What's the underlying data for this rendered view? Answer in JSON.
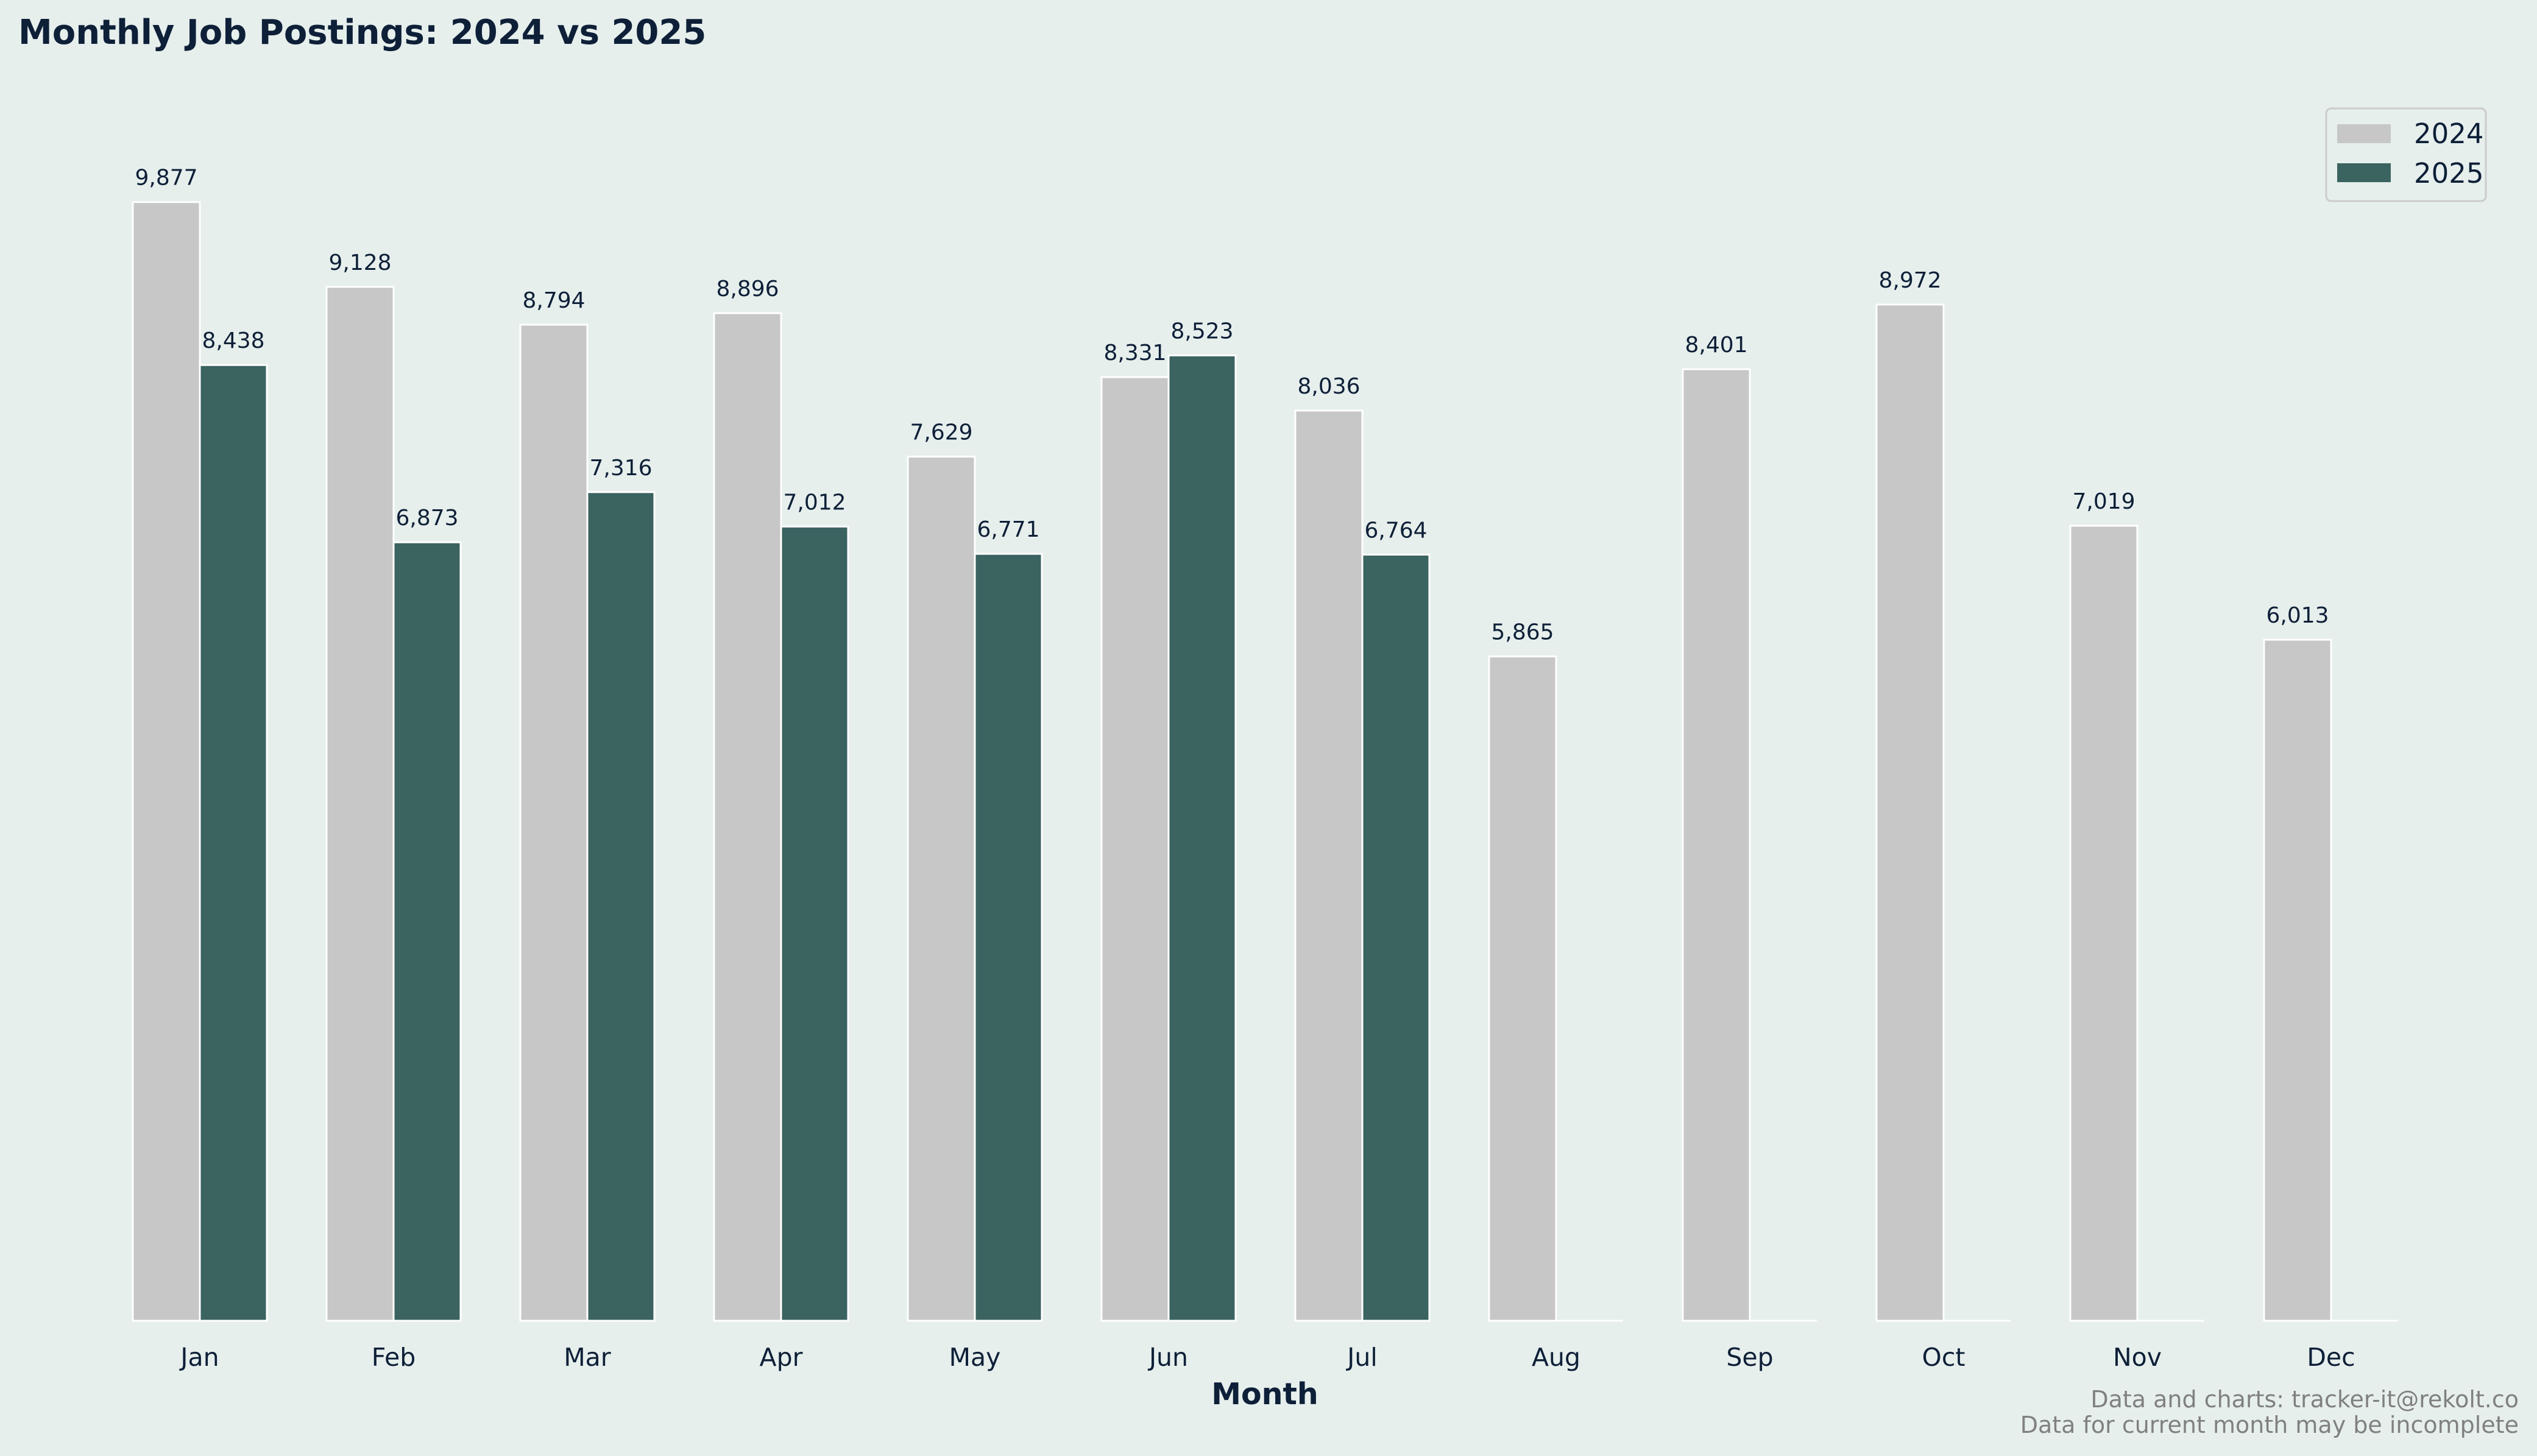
{
  "chart_data": {
    "type": "bar",
    "title": "Monthly Job Postings: 2024 vs 2025",
    "xlabel": "Month",
    "ylabel": "",
    "categories": [
      "Jan",
      "Feb",
      "Mar",
      "Apr",
      "May",
      "Jun",
      "Jul",
      "Aug",
      "Sep",
      "Oct",
      "Nov",
      "Dec"
    ],
    "series": [
      {
        "name": "2024",
        "color": "#c6c7c6",
        "values": [
          9877,
          9128,
          8794,
          8896,
          7629,
          8331,
          8036,
          5865,
          8401,
          8972,
          7019,
          6013
        ],
        "labels": [
          "9,877",
          "9,128",
          "8,794",
          "8,896",
          "7,629",
          "8,331",
          "8,036",
          "5,865",
          "8,401",
          "8,972",
          "7,019",
          "6,013"
        ]
      },
      {
        "name": "2025",
        "color": "#3b6360",
        "values": [
          8438,
          6873,
          7316,
          7012,
          6771,
          8523,
          6764,
          0,
          0,
          0,
          0,
          0
        ],
        "labels": [
          "8,438",
          "6,873",
          "7,316",
          "7,012",
          "6,771",
          "8,523",
          "6,764",
          "",
          "",
          "",
          "",
          ""
        ]
      }
    ],
    "ylim": [
      0,
      10370
    ],
    "grid": false,
    "legend": "top-right"
  },
  "footnotes": [
    "Data and charts: tracker-it@rekolt.co",
    "Data for current month may be incomplete"
  ]
}
